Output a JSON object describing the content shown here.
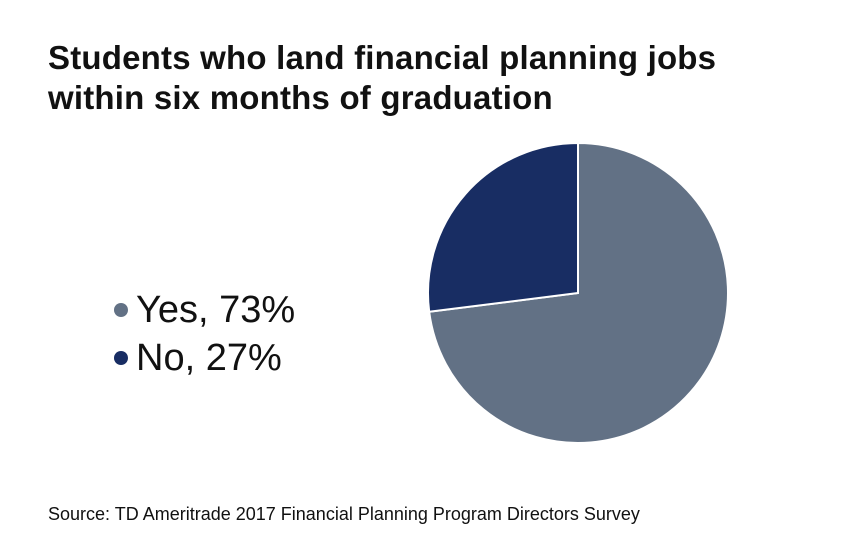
{
  "title": {
    "line1": "Students who land financial planning jobs",
    "line2": "within six months of graduation"
  },
  "legend": {
    "items": [
      {
        "label": "Yes, 73%",
        "color": "#627185"
      },
      {
        "label": "No, 27%",
        "color": "#182d63"
      }
    ]
  },
  "source": "Source: TD Ameritrade 2017 Financial Planning Program Directors Survey",
  "chart_data": {
    "type": "pie",
    "title": "Students who land financial planning jobs within six months of graduation",
    "slices": [
      {
        "label": "Yes",
        "value": 73,
        "color": "#627185"
      },
      {
        "label": "No",
        "value": 27,
        "color": "#182d63"
      }
    ],
    "legend_position": "left"
  }
}
